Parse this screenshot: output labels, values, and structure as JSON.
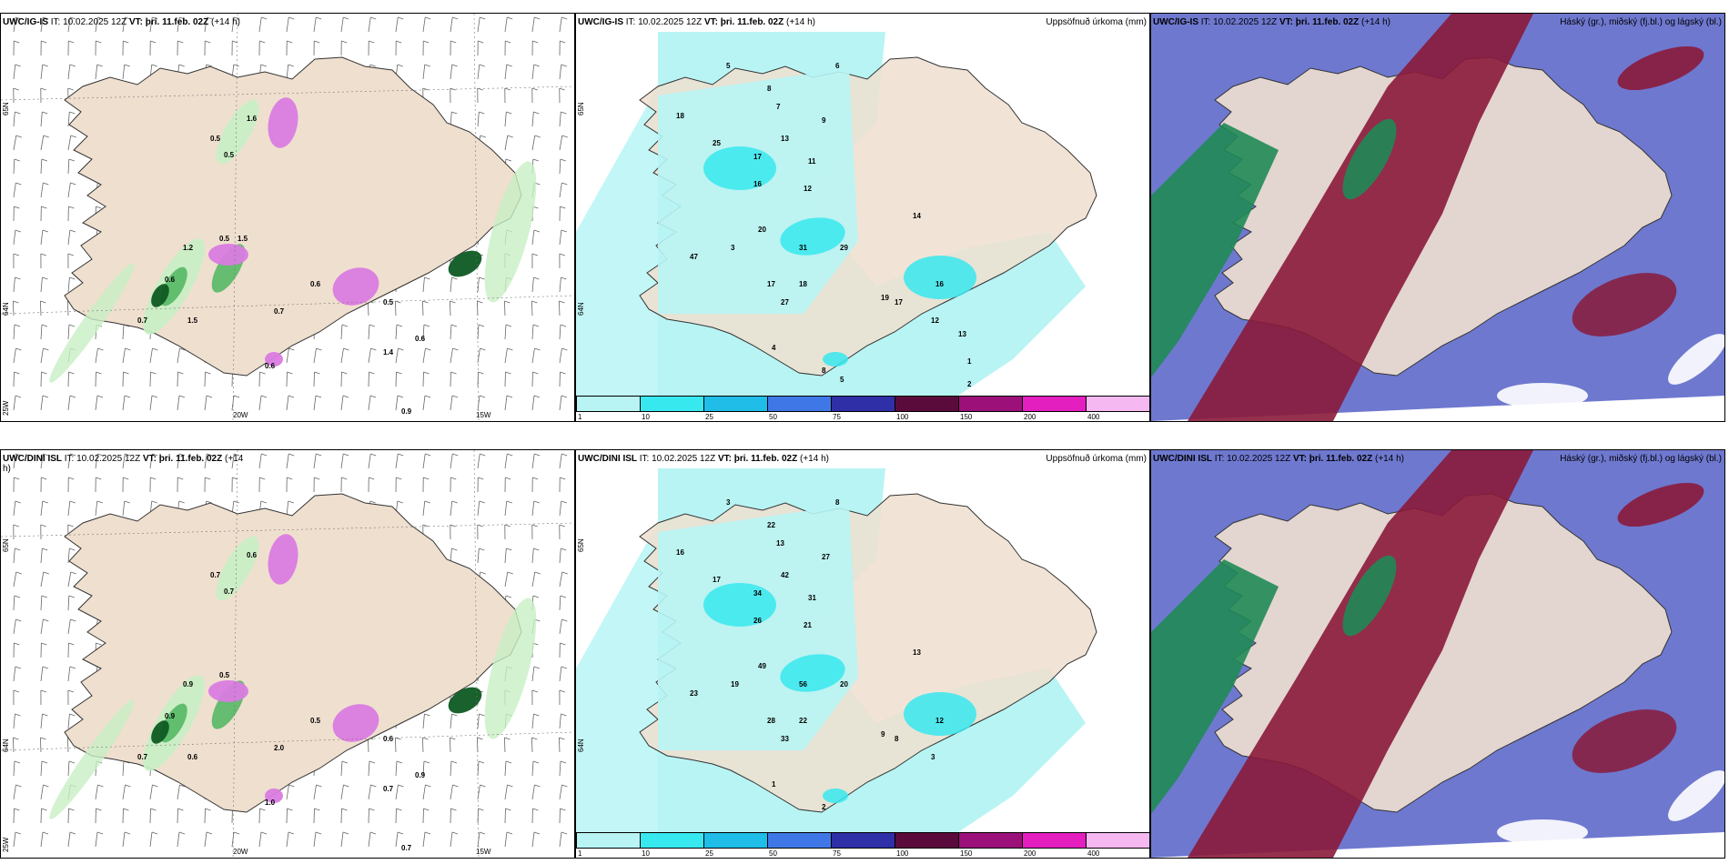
{
  "colors": {
    "land": "#efdfcf",
    "sea": "#ffffff",
    "precip_light": "#b8f4f4",
    "precip_cyan": "#37e8ee",
    "green_light": "#c8efc4",
    "green_mid": "#56b865",
    "green_dark": "#0e5a22",
    "magenta": "#d97be0",
    "cloud_high": "#1f8a55",
    "cloud_mid": "#8a1a3a",
    "cloud_low": "#5560c7"
  },
  "panels": [
    {
      "id": "top-wind",
      "model": "UWC/IG-IS",
      "it_label": "IT:",
      "it_value": "10.02.2025 12Z",
      "vt_label": "VT:",
      "vt_value": "þri. 11.feb. 02Z",
      "lead": "(+14 h)",
      "right_title": "",
      "lat_labels": [
        "65N",
        "64N",
        "25W"
      ],
      "lon_labels": [
        "20W",
        "15W"
      ],
      "values": [
        "0.5",
        "0.5",
        "1.6",
        "0.5",
        "0.6",
        "1.5",
        "0.7",
        "1.2",
        "0.6",
        "0.7",
        "0.5",
        "0.6",
        "1.4",
        "0.9",
        "0.6",
        "1.5"
      ]
    },
    {
      "id": "top-precip",
      "model": "UWC/IG-IS",
      "it_label": "IT:",
      "it_value": "10.02.2025 12Z",
      "vt_label": "VT:",
      "vt_value": "þri. 11.feb. 02Z",
      "lead": "(+14 h)",
      "right_title": "Uppsöfnuð úrkoma (mm)",
      "lat_labels": [
        "65N",
        "64N"
      ],
      "lon_labels": [],
      "values": [
        "5",
        "6",
        "18",
        "8",
        "9",
        "7",
        "25",
        "13",
        "17",
        "11",
        "16",
        "12",
        "20",
        "31",
        "3",
        "47",
        "17",
        "29",
        "18",
        "14",
        "27",
        "16",
        "19",
        "17",
        "12",
        "8",
        "4",
        "5",
        "13",
        "1",
        "2"
      ]
    },
    {
      "id": "top-cloud",
      "model": "UWC/IG-IS",
      "it_label": "IT:",
      "it_value": "10.02.2025 12Z",
      "vt_label": "VT:",
      "vt_value": "þri. 11.feb. 02Z",
      "lead": "(+14 h)",
      "right_title": "Háský (gr.), miðský (fj.bl.) og lágský (bl.)",
      "lat_labels": [],
      "lon_labels": [],
      "values": []
    },
    {
      "id": "bottom-wind",
      "model": "UWC/DINI ISL",
      "it_label": "IT:",
      "it_value": "10.02.2025 12Z",
      "vt_label": "VT:",
      "vt_value": "þri. 11.feb. 02Z",
      "lead": "(+14",
      "lead2": "h)",
      "right_title": "",
      "lat_labels": [
        "65N",
        "64N",
        "25W"
      ],
      "lon_labels": [
        "20W",
        "15W"
      ],
      "values": [
        "0.7",
        "0.7",
        "0.6",
        "0.5",
        "0.9",
        "0.6",
        "0.7",
        "0.9",
        "0.5",
        "2.0",
        "0.6",
        "0.9",
        "0.7",
        "0.7",
        "1.0"
      ]
    },
    {
      "id": "bottom-precip",
      "model": "UWC/DINI ISL",
      "it_label": "IT:",
      "it_value": "10.02.2025 12Z",
      "vt_label": "VT:",
      "vt_value": "þri. 11.feb. 02Z",
      "lead": "(+14 h)",
      "right_title": "Uppsöfnuð úrkoma (mm)",
      "lat_labels": [
        "65N",
        "64N"
      ],
      "lon_labels": [],
      "values": [
        "3",
        "8",
        "16",
        "22",
        "27",
        "13",
        "17",
        "42",
        "34",
        "31",
        "26",
        "21",
        "49",
        "56",
        "19",
        "23",
        "28",
        "20",
        "22",
        "13",
        "33",
        "12",
        "9",
        "8",
        "3",
        "2",
        "1"
      ]
    },
    {
      "id": "bottom-cloud",
      "model": "UWC/DINI ISL",
      "it_label": "IT:",
      "it_value": "10.02.2025 12Z",
      "vt_label": "VT:",
      "vt_value": "þri. 11.feb. 02Z",
      "lead": "(+14 h)",
      "right_title": "Háský (gr.), miðský (fj.bl.) og lágský (bl.)",
      "lat_labels": [],
      "lon_labels": [],
      "values": []
    }
  ],
  "colorbar": {
    "ticks": [
      "1",
      "10",
      "25",
      "50",
      "75",
      "100",
      "150",
      "200",
      "400"
    ],
    "colors": [
      "#b8f4f4",
      "#37e8ee",
      "#1fbde8",
      "#3f78e6",
      "#2f2fa8",
      "#5a0b3c",
      "#9b1179",
      "#e31fbf",
      "#f5b8f0"
    ]
  }
}
